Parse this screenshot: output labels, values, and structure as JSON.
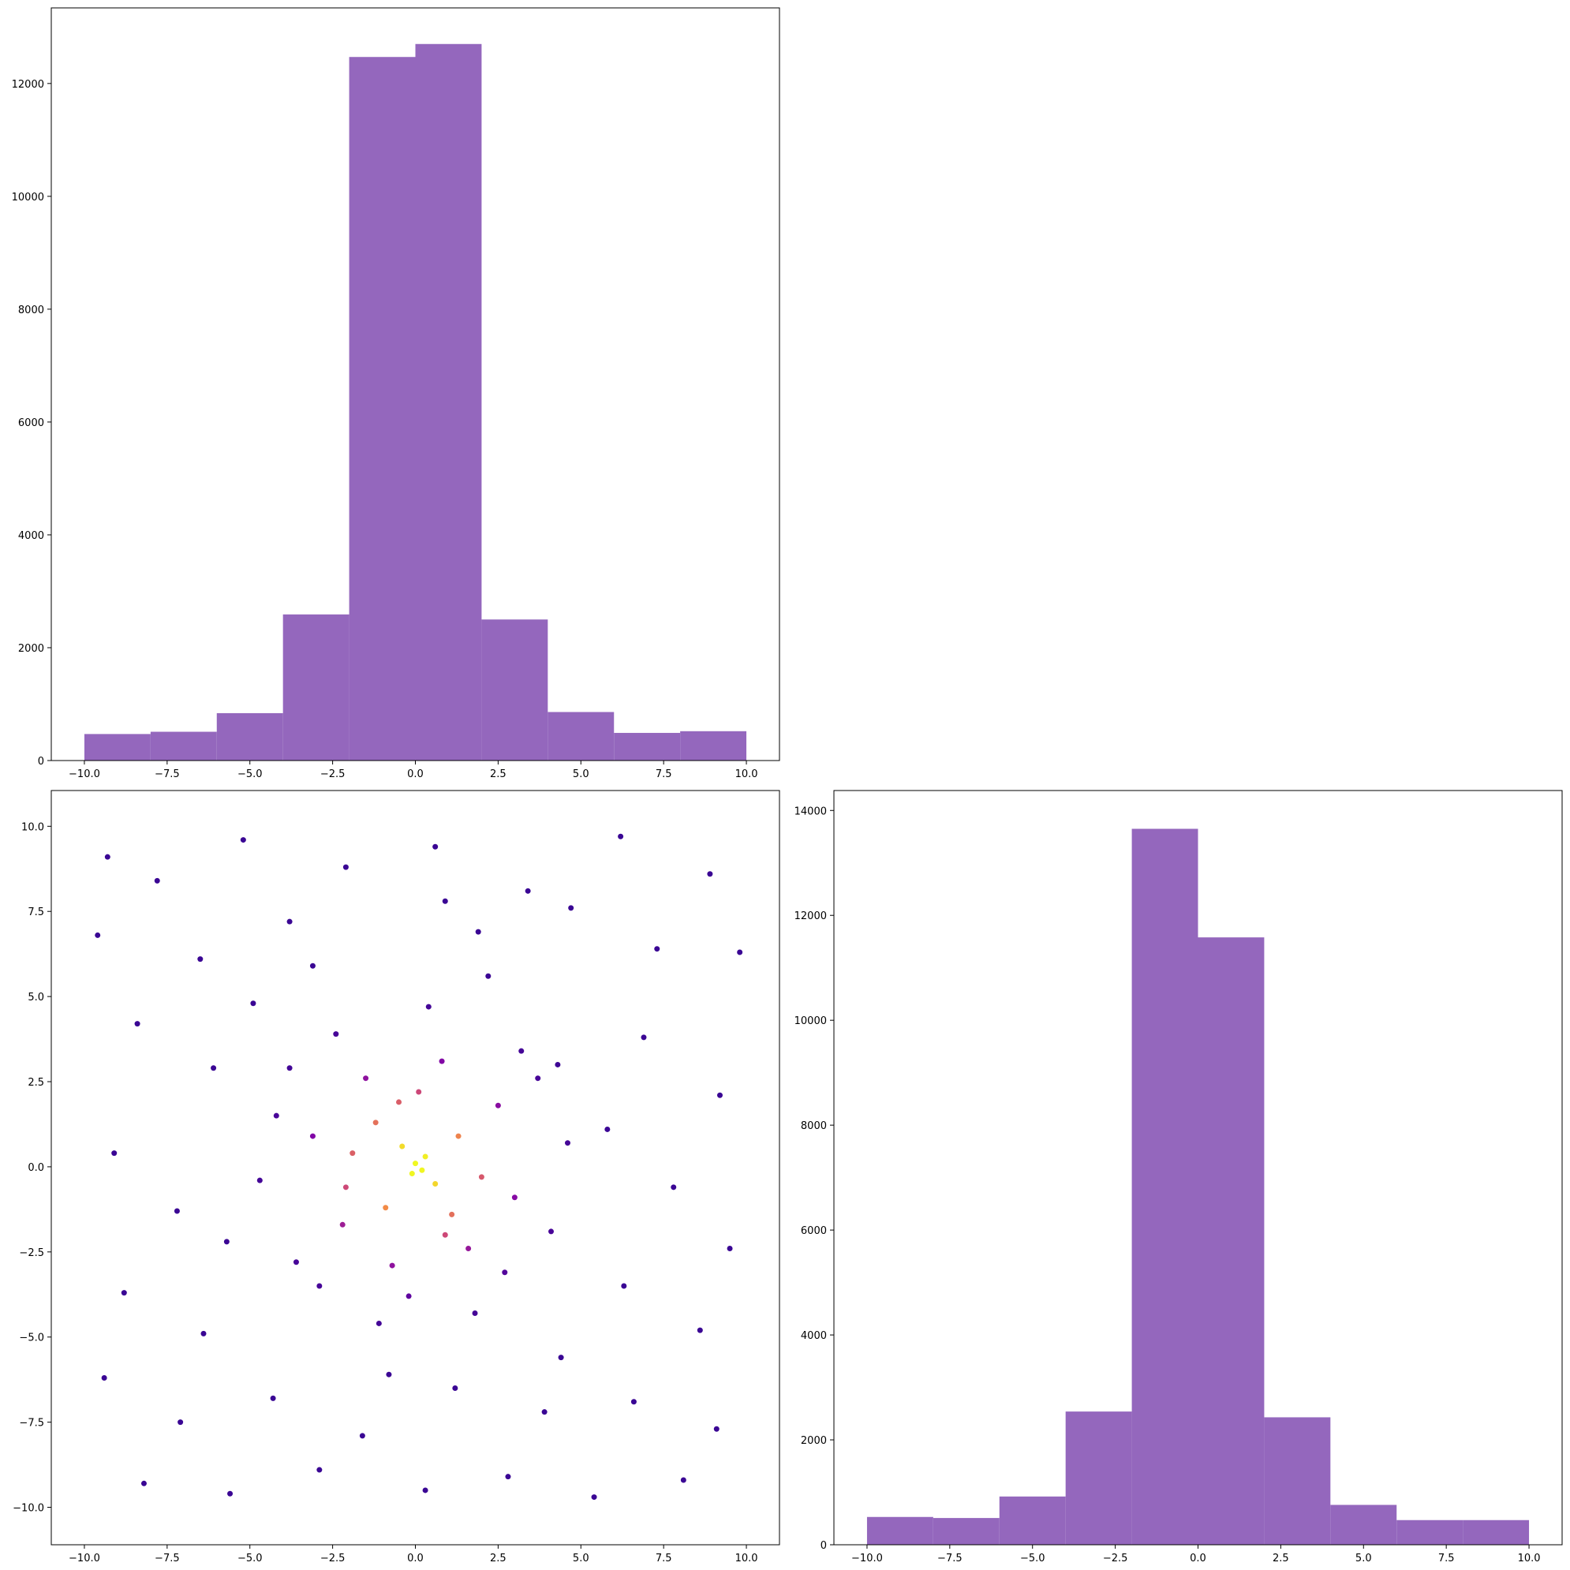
{
  "chart_data": [
    {
      "type": "histogram",
      "color": "#9467bd",
      "bins": [
        -10,
        -8,
        -6,
        -4,
        -2,
        0,
        2,
        4,
        6,
        8,
        10
      ],
      "values": [
        470,
        510,
        840,
        2590,
        12470,
        12700,
        2500,
        860,
        490,
        520
      ],
      "xlim": [
        -11,
        11
      ],
      "ylim": [
        0,
        13340
      ],
      "xticks": [
        {
          "value": -10,
          "label": "−10.0"
        },
        {
          "value": -7.5,
          "label": "−7.5"
        },
        {
          "value": -5,
          "label": "−5.0"
        },
        {
          "value": -2.5,
          "label": "−2.5"
        },
        {
          "value": 0,
          "label": "0.0"
        },
        {
          "value": 2.5,
          "label": "2.5"
        },
        {
          "value": 5,
          "label": "5.0"
        },
        {
          "value": 7.5,
          "label": "7.5"
        },
        {
          "value": 10,
          "label": "10.0"
        }
      ],
      "yticks": [
        0,
        2000,
        4000,
        6000,
        8000,
        10000,
        12000
      ]
    },
    {
      "type": "scatter",
      "colormap": "plasma",
      "x": [
        -9.3,
        -7.8,
        -5.2,
        -2.1,
        0.6,
        3.4,
        6.2,
        8.9,
        9.8,
        -9.6,
        -6.5,
        -3.8,
        1.9,
        4.7,
        7.3,
        -8.4,
        -6.1,
        6.9,
        9.2,
        -9.1,
        -7.2,
        7.8,
        9.5,
        -8.8,
        -6.4,
        6.3,
        8.6,
        -9.4,
        -7.1,
        -4.3,
        -1.6,
        1.2,
        3.9,
        6.6,
        9.1,
        -8.2,
        -5.6,
        -2.9,
        0.3,
        2.8,
        5.4,
        8.1,
        -3.1,
        0.9,
        -5.7,
        5.8,
        -4.9,
        4.4,
        -0.8,
        2.2,
        -4.2,
        -3.6,
        -2.4,
        -1.1,
        0.4,
        1.8,
        3.2,
        4.1,
        4.6,
        -4.7,
        -3.1,
        -2.2,
        -1.5,
        -0.7,
        0.8,
        1.6,
        2.5,
        3.0,
        2.7,
        -2.9,
        -3.8,
        3.7,
        -0.2,
        0.1,
        -1.9,
        1.3,
        -0.9,
        1.1,
        -1.2,
        0.6,
        -0.4,
        0.2,
        0.0,
        -0.1,
        0.3,
        2.0,
        -2.1,
        -0.5,
        0.9,
        4.3
      ],
      "values": [
        9.1,
        8.4,
        9.6,
        8.8,
        9.4,
        8.1,
        9.7,
        8.6,
        6.3,
        6.8,
        6.1,
        7.2,
        6.9,
        7.6,
        6.4,
        4.2,
        2.9,
        3.8,
        2.1,
        0.4,
        -1.3,
        -0.6,
        -2.4,
        -3.7,
        -4.9,
        -3.5,
        -4.8,
        -6.2,
        -7.5,
        -6.8,
        -7.9,
        -6.5,
        -7.2,
        -6.9,
        -7.7,
        -9.3,
        -9.6,
        -8.9,
        -9.5,
        -9.1,
        -9.7,
        -9.2,
        5.9,
        7.8,
        -2.2,
        1.1,
        4.8,
        -5.6,
        -6.1,
        5.6,
        1.5,
        -2.8,
        3.9,
        -4.6,
        4.7,
        -4.3,
        3.4,
        -1.9,
        0.7,
        -0.4,
        0.9,
        -1.7,
        2.6,
        -2.9,
        3.1,
        -2.4,
        1.8,
        -0.9,
        -3.1,
        -3.5,
        2.9,
        2.6,
        -3.8,
        2.2,
        0.4,
        0.9,
        -1.2,
        -1.4,
        1.3,
        -0.5,
        0.6,
        -0.1,
        0.1,
        -0.2,
        0.3,
        -0.3,
        -0.6,
        1.9,
        -2.0,
        3.0
      ],
      "xlim": [
        -11,
        11
      ],
      "ylim": [
        -11.1,
        11.05
      ],
      "xticks": [
        {
          "value": -10,
          "label": "−10.0"
        },
        {
          "value": -7.5,
          "label": "−7.5"
        },
        {
          "value": -5,
          "label": "−5.0"
        },
        {
          "value": -2.5,
          "label": "−2.5"
        },
        {
          "value": 0,
          "label": "0.0"
        },
        {
          "value": 2.5,
          "label": "2.5"
        },
        {
          "value": 5,
          "label": "5.0"
        },
        {
          "value": 7.5,
          "label": "7.5"
        },
        {
          "value": 10,
          "label": "10.0"
        }
      ],
      "yticks": [
        {
          "value": -10,
          "label": "−10.0"
        },
        {
          "value": -7.5,
          "label": "−7.5"
        },
        {
          "value": -5,
          "label": "−5.0"
        },
        {
          "value": -2.5,
          "label": "−2.5"
        },
        {
          "value": 0,
          "label": "0.0"
        },
        {
          "value": 2.5,
          "label": "2.5"
        },
        {
          "value": 5,
          "label": "5.0"
        },
        {
          "value": 7.5,
          "label": "7.5"
        },
        {
          "value": 10,
          "label": "10.0"
        }
      ]
    },
    {
      "type": "histogram",
      "color": "#9467bd",
      "bins": [
        -10,
        -8,
        -6,
        -4,
        -2,
        0,
        2,
        4,
        6,
        8,
        10
      ],
      "values": [
        530,
        510,
        920,
        2540,
        13650,
        11580,
        2430,
        760,
        470,
        470
      ],
      "xlim": [
        -11,
        11
      ],
      "ylim": [
        0,
        14380
      ],
      "xticks": [
        {
          "value": -10,
          "label": "−10.0"
        },
        {
          "value": -7.5,
          "label": "−7.5"
        },
        {
          "value": -5,
          "label": "−5.0"
        },
        {
          "value": -2.5,
          "label": "−2.5"
        },
        {
          "value": 0,
          "label": "0.0"
        },
        {
          "value": 2.5,
          "label": "2.5"
        },
        {
          "value": 5,
          "label": "5.0"
        },
        {
          "value": 7.5,
          "label": "7.5"
        },
        {
          "value": 10,
          "label": "10.0"
        }
      ],
      "yticks": [
        0,
        2000,
        4000,
        6000,
        8000,
        10000,
        12000,
        14000
      ]
    }
  ]
}
